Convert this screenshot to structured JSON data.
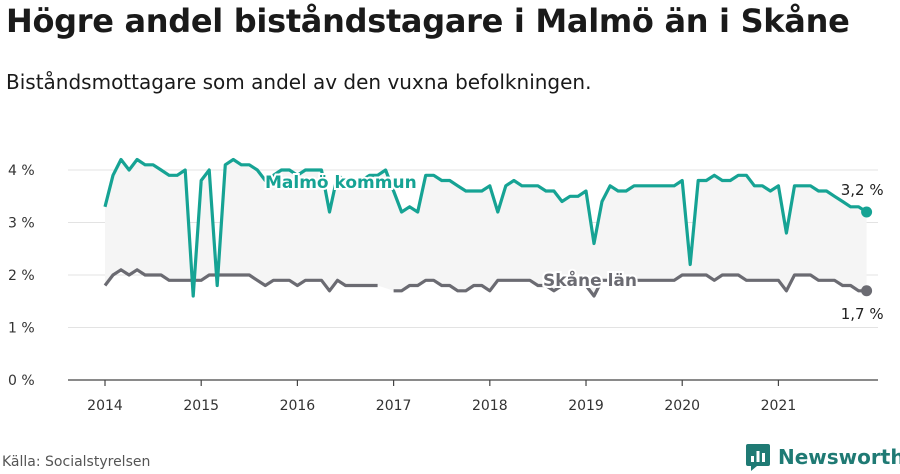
{
  "title": "Högre andel biståndstagare i Malmö än i Skåne",
  "subtitle": "Biståndsmottagare som andel av den vuxna befolkningen.",
  "source": "Källa: Socialstyrelsen",
  "brand": {
    "name": "Newsworthy",
    "icon": "newsworthy-logo-icon",
    "color": "#1f7a74"
  },
  "chart_data": {
    "type": "line",
    "title": "Högre andel biståndstagare i Malmö än i Skåne",
    "subtitle": "Biståndsmottagare som andel av den vuxna befolkningen.",
    "ylim": [
      0,
      4
    ],
    "y_ticks": [
      0,
      1,
      2,
      3,
      4
    ],
    "y_tick_labels": [
      "0 %",
      "1 %",
      "2 %",
      "3 %",
      "4 %"
    ],
    "xlim": [
      2014,
      2021.9
    ],
    "x_ticks": [
      2014,
      2015,
      2016,
      2017,
      2018,
      2019,
      2020,
      2021
    ],
    "x_tick_labels": [
      "2014",
      "2015",
      "2016",
      "2017",
      "2018",
      "2019",
      "2020",
      "2021"
    ],
    "grid": true,
    "series": [
      {
        "name": "Malmö kommun",
        "color": "#16a394",
        "end_label": "3,2 %",
        "x_start": "2014-01",
        "frequency": "monthly",
        "values": [
          3.3,
          3.9,
          4.2,
          4.0,
          4.2,
          4.1,
          4.1,
          4.0,
          3.9,
          3.9,
          4.0,
          1.6,
          3.8,
          4.0,
          1.8,
          4.1,
          4.2,
          4.1,
          4.1,
          4.0,
          3.8,
          3.9,
          4.0,
          4.0,
          3.9,
          4.0,
          4.0,
          4.0,
          3.2,
          3.9,
          3.8,
          3.8,
          3.8,
          3.9,
          3.9,
          4.0,
          3.6,
          3.2,
          3.3,
          3.2,
          3.9,
          3.9,
          3.8,
          3.8,
          3.7,
          3.6,
          3.6,
          3.6,
          3.7,
          3.2,
          3.7,
          3.8,
          3.7,
          3.7,
          3.7,
          3.6,
          3.6,
          3.4,
          3.5,
          3.5,
          3.6,
          2.6,
          3.4,
          3.7,
          3.6,
          3.6,
          3.7,
          3.7,
          3.7,
          3.7,
          3.7,
          3.7,
          3.8,
          2.2,
          3.8,
          3.8,
          3.9,
          3.8,
          3.8,
          3.9,
          3.9,
          3.7,
          3.7,
          3.6,
          3.7,
          2.8,
          3.7,
          3.7,
          3.7,
          3.6,
          3.6,
          3.5,
          3.4,
          3.3,
          3.3,
          3.2
        ]
      },
      {
        "name": "Skåne län",
        "color": "#6b6b72",
        "end_label": "1,7 %",
        "x_start": "2014-01",
        "frequency": "monthly",
        "values": [
          1.8,
          2.0,
          2.1,
          2.0,
          2.1,
          2.0,
          2.0,
          2.0,
          1.9,
          1.9,
          1.9,
          1.9,
          1.9,
          2.0,
          2.0,
          2.0,
          2.0,
          2.0,
          2.0,
          1.9,
          1.8,
          1.9,
          1.9,
          1.9,
          1.8,
          1.9,
          1.9,
          1.9,
          1.7,
          1.9,
          1.8,
          1.8,
          1.8,
          1.8,
          1.8,
          null,
          1.7,
          1.7,
          1.8,
          1.8,
          1.9,
          1.9,
          1.8,
          1.8,
          1.7,
          1.7,
          1.8,
          1.8,
          1.7,
          1.9,
          1.9,
          1.9,
          1.9,
          1.9,
          1.8,
          1.8,
          1.7,
          1.8,
          1.8,
          1.8,
          1.8,
          1.6,
          1.9,
          1.9,
          1.9,
          1.9,
          1.9,
          1.9,
          1.9,
          1.9,
          1.9,
          1.9,
          2.0,
          2.0,
          2.0,
          2.0,
          1.9,
          2.0,
          2.0,
          2.0,
          1.9,
          1.9,
          1.9,
          1.9,
          1.9,
          1.7,
          2.0,
          2.0,
          2.0,
          1.9,
          1.9,
          1.9,
          1.8,
          1.8,
          1.7,
          1.7
        ]
      }
    ]
  }
}
